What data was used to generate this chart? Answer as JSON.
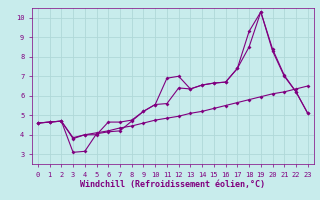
{
  "xlabel": "Windchill (Refroidissement éolien,°C)",
  "background_color": "#c8ecec",
  "grid_color": "#b0d8d8",
  "line_color": "#800080",
  "xlim": [
    -0.5,
    23.5
  ],
  "ylim": [
    2.5,
    10.5
  ],
  "yticks": [
    3,
    4,
    5,
    6,
    7,
    8,
    9,
    10
  ],
  "xticks": [
    0,
    1,
    2,
    3,
    4,
    5,
    6,
    7,
    8,
    9,
    10,
    11,
    12,
    13,
    14,
    15,
    16,
    17,
    18,
    19,
    20,
    21,
    22,
    23
  ],
  "series1_x": [
    0,
    1,
    2,
    3,
    4,
    5,
    6,
    7,
    8,
    9,
    10,
    11,
    12,
    13,
    14,
    15,
    16,
    17,
    18,
    19,
    20,
    21,
    22,
    23
  ],
  "series1_y": [
    4.6,
    4.65,
    4.7,
    3.85,
    4.0,
    4.1,
    4.2,
    4.35,
    4.45,
    4.6,
    4.75,
    4.85,
    4.95,
    5.1,
    5.2,
    5.35,
    5.5,
    5.65,
    5.8,
    5.95,
    6.1,
    6.2,
    6.35,
    6.5
  ],
  "series2_x": [
    0,
    1,
    2,
    3,
    4,
    5,
    6,
    7,
    8,
    9,
    10,
    11,
    12,
    13,
    14,
    15,
    16,
    17,
    18,
    19,
    20,
    21,
    22,
    23
  ],
  "series2_y": [
    4.6,
    4.65,
    4.7,
    3.1,
    3.15,
    4.05,
    4.15,
    4.2,
    4.7,
    5.2,
    5.55,
    6.9,
    7.0,
    6.35,
    6.55,
    6.65,
    6.7,
    7.4,
    9.3,
    10.3,
    8.4,
    7.05,
    6.2,
    5.1
  ],
  "series3_x": [
    0,
    1,
    2,
    3,
    4,
    5,
    6,
    7,
    8,
    9,
    10,
    11,
    12,
    13,
    14,
    15,
    16,
    17,
    18,
    19,
    20,
    21,
    22,
    23
  ],
  "series3_y": [
    4.6,
    4.65,
    4.7,
    3.8,
    4.0,
    4.0,
    4.65,
    4.65,
    4.75,
    5.2,
    5.55,
    5.6,
    6.4,
    6.35,
    6.55,
    6.65,
    6.7,
    7.4,
    8.5,
    10.3,
    8.3,
    7.0,
    6.2,
    5.1
  ],
  "marker": "D",
  "markersize": 2.0,
  "linewidth": 0.8,
  "tick_fontsize": 5.0,
  "xlabel_fontsize": 6.0
}
